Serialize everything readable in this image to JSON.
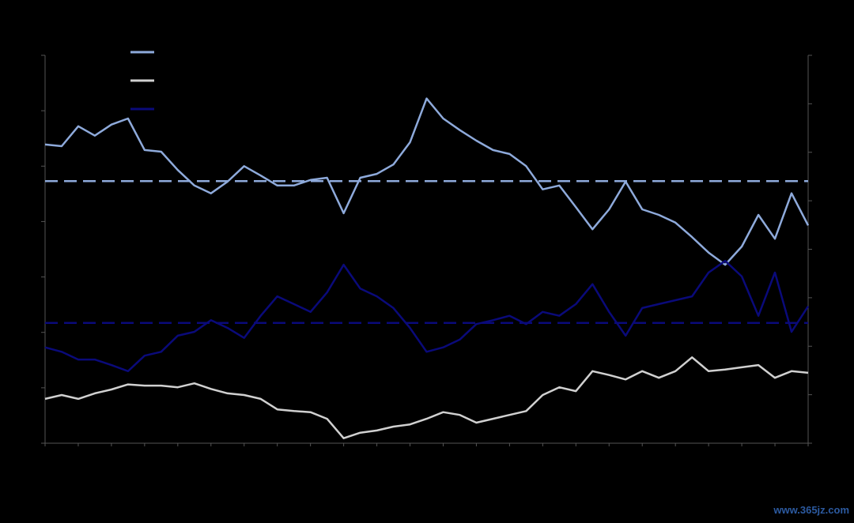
{
  "chart_data": {
    "type": "line",
    "xlim": [
      0,
      23
    ],
    "xticks": [
      0,
      1,
      2,
      3,
      4,
      5,
      6,
      7,
      8,
      9,
      10,
      11,
      12,
      13,
      14,
      15,
      16,
      17,
      18,
      19,
      20,
      21,
      22,
      23
    ],
    "ylim": [
      0,
      7
    ],
    "yticks": [
      0,
      1,
      2,
      3,
      4,
      5,
      6,
      7
    ],
    "y2lim": [
      0,
      8
    ],
    "y2ticks": [
      0,
      1,
      2,
      3,
      4,
      5,
      6,
      7,
      8
    ],
    "x": [
      0,
      0.5,
      1,
      1.5,
      2,
      2.5,
      3,
      3.5,
      4,
      4.5,
      5,
      5.5,
      6,
      6.5,
      7,
      7.5,
      8,
      8.5,
      9,
      9.5,
      10,
      10.5,
      11,
      11.5,
      12,
      12.5,
      13,
      13.5,
      14,
      14.5,
      15,
      15.5,
      16,
      16.5,
      17,
      17.5,
      18,
      18.5,
      19,
      19.5,
      20,
      20.5,
      21,
      21.5,
      22,
      22.5,
      23
    ],
    "series": [
      {
        "color": "#8eaadb",
        "values": [
          5.39,
          5.36,
          5.72,
          5.55,
          5.75,
          5.86,
          5.29,
          5.26,
          4.93,
          4.65,
          4.51,
          4.72,
          5.0,
          4.83,
          4.65,
          4.65,
          4.75,
          4.79,
          4.15,
          4.79,
          4.86,
          5.03,
          5.43,
          6.22,
          5.86,
          5.65,
          5.46,
          5.29,
          5.22,
          5.0,
          4.58,
          4.65,
          4.26,
          3.86,
          4.22,
          4.72,
          4.22,
          4.12,
          3.98,
          3.72,
          3.44,
          3.22,
          3.55,
          4.12,
          3.69,
          4.51,
          3.93
        ]
      },
      {
        "color": "#d0d0d0",
        "values": [
          0.8,
          0.87,
          0.8,
          0.9,
          0.97,
          1.06,
          1.04,
          1.04,
          1.01,
          1.08,
          0.98,
          0.9,
          0.87,
          0.8,
          0.61,
          0.58,
          0.56,
          0.44,
          0.09,
          0.19,
          0.23,
          0.3,
          0.34,
          0.44,
          0.56,
          0.51,
          0.37,
          0.44,
          0.51,
          0.58,
          0.87,
          1.01,
          0.94,
          1.3,
          1.23,
          1.15,
          1.3,
          1.18,
          1.3,
          1.55,
          1.3,
          1.33,
          1.37,
          1.41,
          1.18,
          1.3,
          1.27
        ]
      },
      {
        "color": "#0a0a7a",
        "values": [
          1.73,
          1.65,
          1.51,
          1.51,
          1.41,
          1.3,
          1.58,
          1.65,
          1.94,
          2.01,
          2.22,
          2.08,
          1.9,
          2.3,
          2.65,
          2.51,
          2.37,
          2.72,
          3.22,
          2.79,
          2.65,
          2.44,
          2.08,
          1.65,
          1.73,
          1.87,
          2.15,
          2.22,
          2.3,
          2.15,
          2.37,
          2.3,
          2.51,
          2.87,
          2.37,
          1.94,
          2.44,
          2.51,
          2.58,
          2.65,
          3.08,
          3.29,
          3.01,
          2.3,
          3.08,
          2.01,
          2.47
        ]
      }
    ],
    "hlines": [
      {
        "value": 4.73,
        "color": "#8eaadb"
      },
      {
        "value": 2.17,
        "color": "#0a0a7a"
      }
    ]
  },
  "watermark": "www.365jz.com"
}
